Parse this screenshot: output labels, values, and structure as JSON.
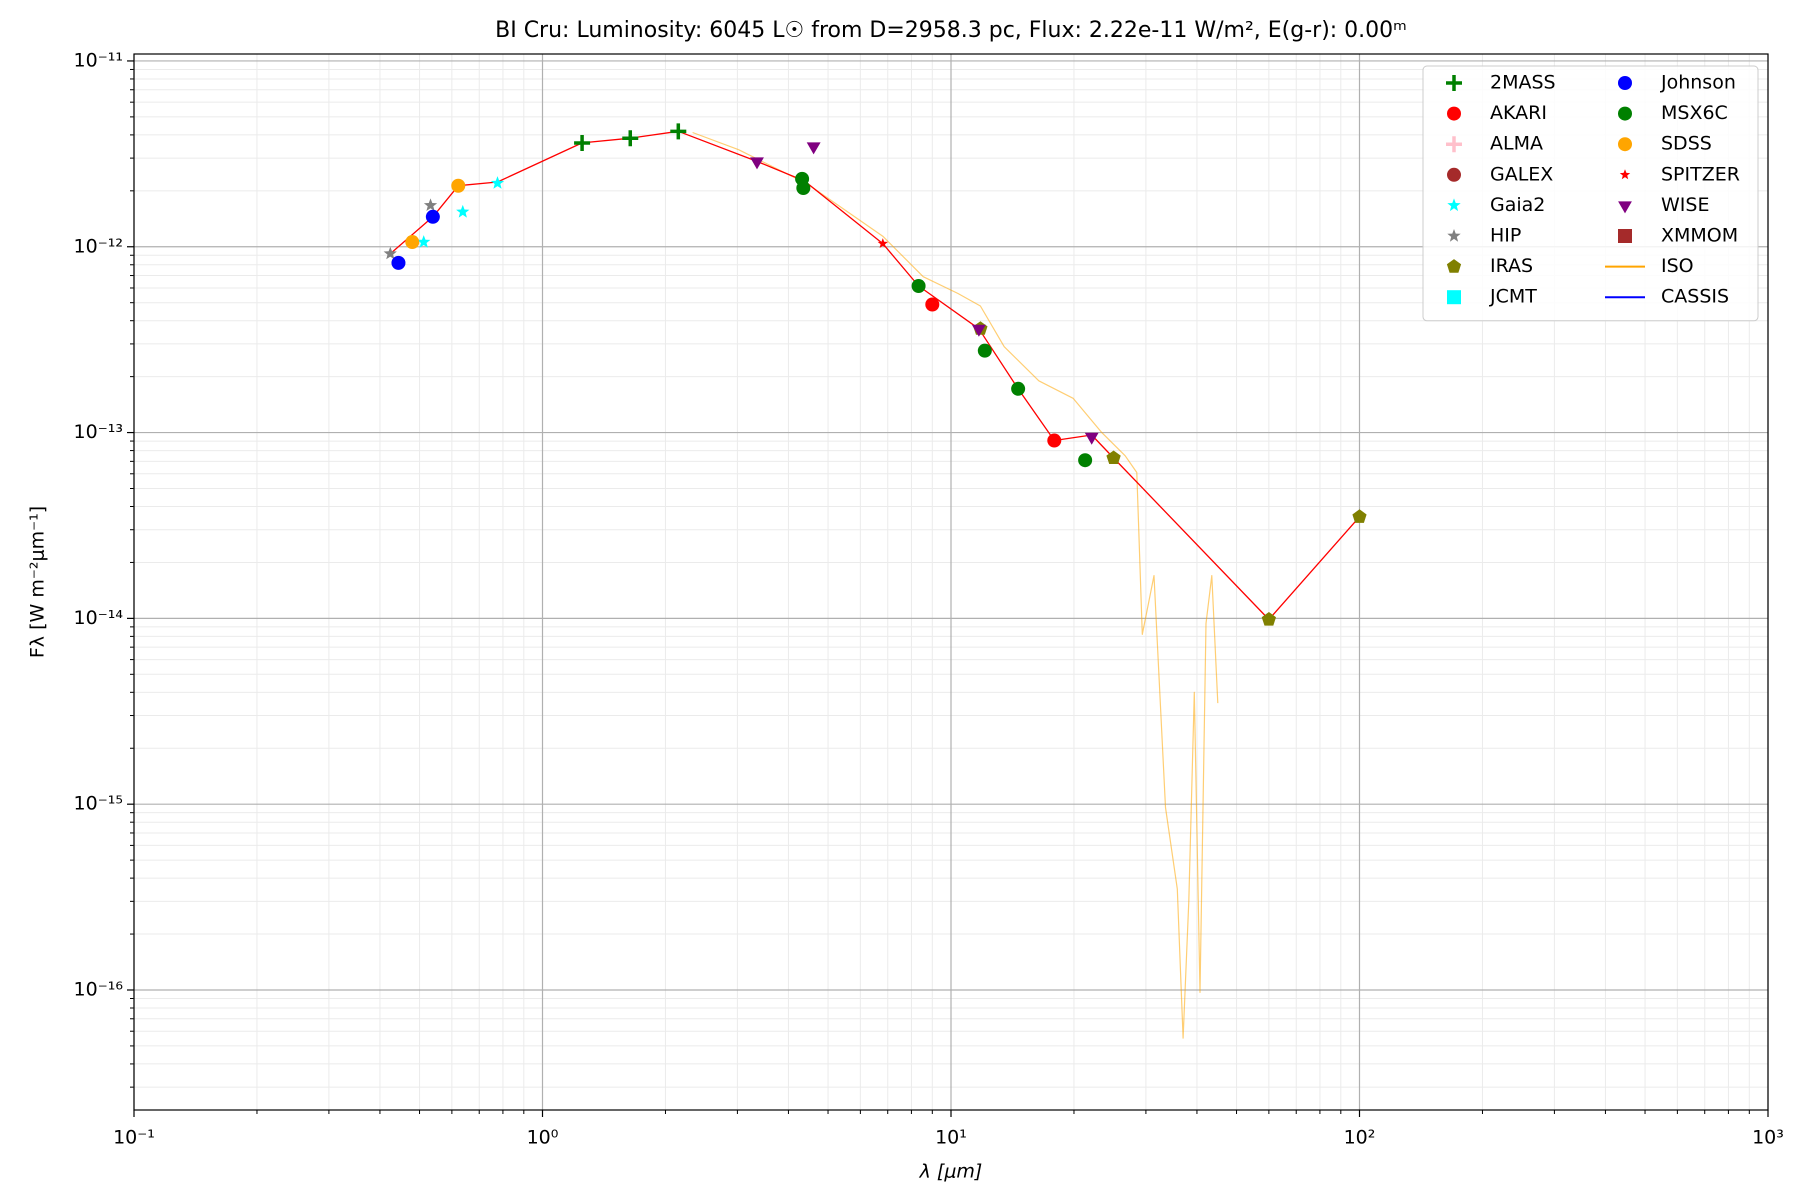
{
  "chart_data": {
    "type": "scatter",
    "title": "BI Cru:  Luminosity: 6045 L☉ from D=2958.3 pc, Flux: 2.22e-11 W/m², E(g-r): 0.00ᵐ",
    "xlabel": "λ [μm]",
    "ylabel": "Fλ [W m⁻²μm⁻¹]",
    "xscale": "log",
    "yscale": "log",
    "xlim": [
      0.1,
      1000
    ],
    "ylim": [
      2.26e-17,
      1.09e-11
    ],
    "xticks": [
      {
        "value": 0.1,
        "label": "10⁻¹"
      },
      {
        "value": 1,
        "label": "10⁰"
      },
      {
        "value": 10,
        "label": "10¹"
      },
      {
        "value": 100,
        "label": "10²"
      },
      {
        "value": 1000,
        "label": "10³"
      }
    ],
    "yticks": [
      {
        "value": 1e-16,
        "label": "10⁻¹⁶"
      },
      {
        "value": 1e-15,
        "label": "10⁻¹⁵"
      },
      {
        "value": 1e-14,
        "label": "10⁻¹⁴"
      },
      {
        "value": 1e-13,
        "label": "10⁻¹³"
      },
      {
        "value": 1e-12,
        "label": "10⁻¹²"
      },
      {
        "value": 1e-11,
        "label": "10⁻¹¹"
      }
    ],
    "grid": true,
    "minor_grid": true,
    "legend": "upper right",
    "legend_columns": 2,
    "series": [
      {
        "name": "2MASS",
        "color": "green",
        "marker": "plus",
        "x": [
          1.25,
          1.64,
          2.15
        ],
        "values": [
          3.62e-12,
          3.84e-12,
          4.18e-12
        ]
      },
      {
        "name": "AKARI",
        "color": "red",
        "marker": "circle",
        "x": [
          9.0,
          17.9
        ],
        "values": [
          4.89e-13,
          9.06e-14
        ]
      },
      {
        "name": "ALMA",
        "color": "pink",
        "marker": "plus",
        "x": [],
        "values": []
      },
      {
        "name": "GALEX",
        "color": "brown",
        "marker": "circle",
        "x": [],
        "values": []
      },
      {
        "name": "Gaia2",
        "color": "cyan",
        "marker": "star",
        "x": [
          0.512,
          0.638,
          0.776
        ],
        "values": [
          1.06e-12,
          1.54e-12,
          2.2e-12
        ]
      },
      {
        "name": "HIP",
        "color": "gray",
        "marker": "star",
        "x": [
          0.424,
          0.532
        ],
        "values": [
          9.18e-13,
          1.67e-12
        ]
      },
      {
        "name": "IRAS",
        "color": "olive",
        "marker": "pentagon",
        "x": [
          11.8,
          25.0,
          60.0,
          100
        ],
        "values": [
          3.62e-13,
          7.3e-14,
          9.86e-15,
          3.52e-14
        ]
      },
      {
        "name": "JCMT",
        "color": "cyan",
        "marker": "square",
        "x": [],
        "values": []
      },
      {
        "name": "Johnson",
        "color": "blue",
        "marker": "circle",
        "x": [
          0.444,
          0.539
        ],
        "values": [
          8.19e-13,
          1.45e-12
        ]
      },
      {
        "name": "MSX6C",
        "color": "green",
        "marker": "circle",
        "x": [
          4.32,
          4.35,
          8.33,
          12.1,
          14.6,
          21.3
        ],
        "values": [
          2.32e-12,
          2.07e-12,
          6.15e-13,
          2.76e-13,
          1.72e-13,
          7.1e-14
        ]
      },
      {
        "name": "SDSS",
        "color": "orange",
        "marker": "circle",
        "x": [
          0.48,
          0.622
        ],
        "values": [
          1.06e-12,
          2.13e-12
        ]
      },
      {
        "name": "SPITZER",
        "color": "red",
        "marker": "small-star",
        "x": [
          6.81
        ],
        "values": [
          1.04e-12
        ]
      },
      {
        "name": "WISE",
        "color": "purple",
        "marker": "triangle-down",
        "x": [
          3.35,
          4.61,
          11.7,
          22.1
        ],
        "values": [
          2.88e-12,
          3.47e-12,
          3.62e-13,
          9.5e-14
        ]
      },
      {
        "name": "XMMOM",
        "color": "brown",
        "marker": "square",
        "x": [],
        "values": []
      },
      {
        "name": "ISO",
        "color": "orange",
        "marker": "line",
        "x": [
          2.33,
          3.02,
          4.46,
          6.81,
          8.55,
          10.4,
          11.8,
          13.5,
          16.4,
          19.9,
          23.4,
          26.7,
          28.5,
          29.4,
          31.4,
          33.5,
          35.8,
          37.0,
          38.2,
          39.4,
          40.7,
          42.1,
          43.5,
          45.0
        ],
        "values": [
          4.12e-12,
          3.33e-12,
          2.17e-12,
          1.14e-12,
          6.9e-13,
          5.6e-13,
          4.8e-13,
          2.9e-13,
          1.9e-13,
          1.53e-13,
          1e-13,
          7.5e-14,
          6.1e-14,
          8.2e-15,
          1.7e-14,
          9.6e-16,
          3.5e-16,
          5.5e-17,
          3e-16,
          4e-15,
          9.7e-17,
          9.4e-15,
          1.7e-14,
          3.5e-15
        ]
      },
      {
        "name": "CASSIS",
        "color": "blue",
        "marker": "line",
        "x": [],
        "values": []
      },
      {
        "color": "red",
        "marker": "model-line",
        "x": [
          0.424,
          0.539,
          0.622,
          0.776,
          1.25,
          1.64,
          2.15,
          3.35,
          4.38,
          6.81,
          8.33,
          11.7,
          14.6,
          17.9,
          22.1,
          25.0,
          60.0,
          100
        ],
        "values": [
          9.18e-13,
          1.45e-12,
          2.13e-12,
          2.23e-12,
          3.62e-12,
          3.84e-12,
          4.18e-12,
          2.88e-12,
          2.26e-12,
          1.04e-12,
          6.15e-13,
          3.62e-13,
          1.72e-13,
          9.06e-14,
          9.7e-14,
          7.3e-14,
          9.86e-15,
          3.52e-14
        ]
      }
    ]
  }
}
